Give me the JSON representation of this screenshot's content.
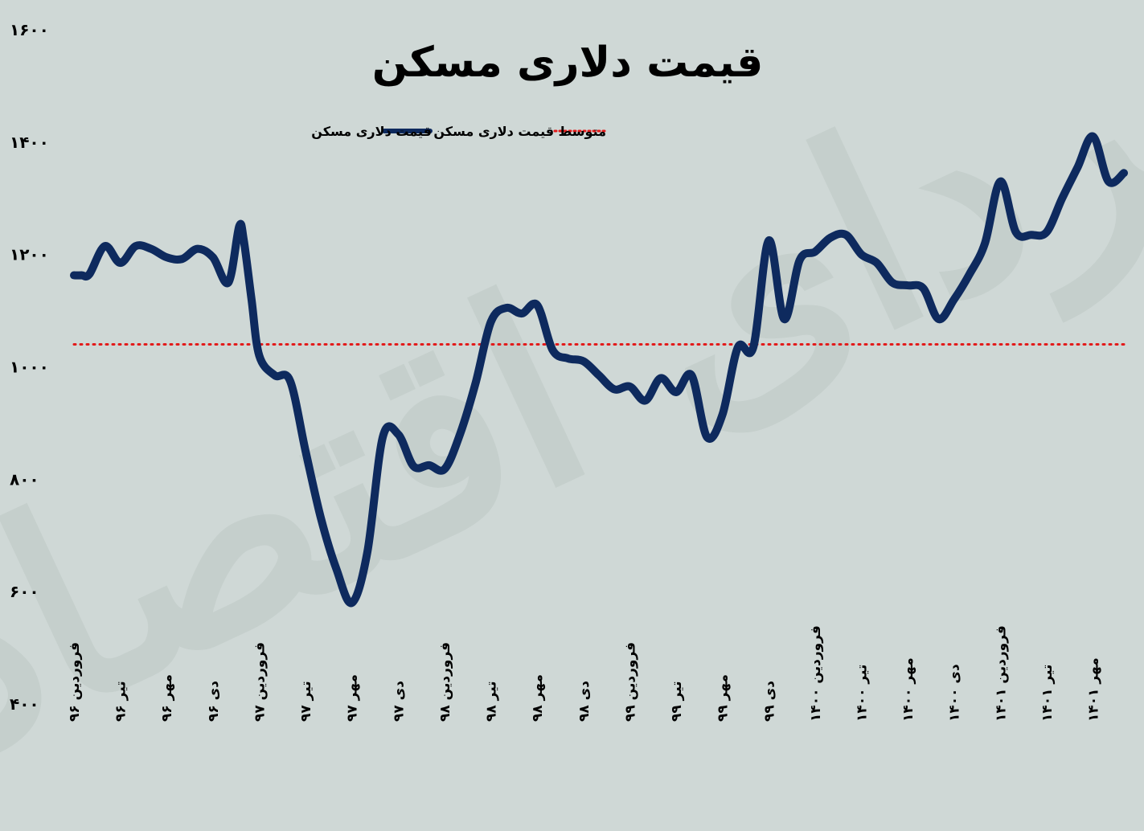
{
  "chart_data": {
    "type": "line",
    "title": "قیمت دلاری مسکن",
    "legend": {
      "position": "top",
      "items": [
        {
          "label": "قیمت دلاری مسکن",
          "style": "solid",
          "color": "#0e2a5e"
        },
        {
          "label": "متوسط قیمت دلاری مسکن",
          "style": "dotted",
          "color": "#e31a1a"
        }
      ]
    },
    "watermark": "فردای اقتصاد",
    "ylim": [
      400,
      1600
    ],
    "yticks": [
      "۴۰۰",
      "۶۰۰",
      "۸۰۰",
      "۱۰۰۰",
      "۱۲۰۰",
      "۱۴۰۰",
      "۱۶۰۰"
    ],
    "ytick_values": [
      400,
      600,
      800,
      1000,
      1200,
      1400,
      1600
    ],
    "xlim": [
      0,
      68
    ],
    "xticks": [
      {
        "pos": 0,
        "label": "فروردین ۹۶"
      },
      {
        "pos": 3,
        "label": "تیر ۹۶"
      },
      {
        "pos": 6,
        "label": "مهر ۹۶"
      },
      {
        "pos": 9,
        "label": "دی ۹۶"
      },
      {
        "pos": 12,
        "label": "فروردین ۹۷"
      },
      {
        "pos": 15,
        "label": "تیر ۹۷"
      },
      {
        "pos": 18,
        "label": "مهر ۹۷"
      },
      {
        "pos": 21,
        "label": "دی ۹۷"
      },
      {
        "pos": 24,
        "label": "فروردین ۹۸"
      },
      {
        "pos": 27,
        "label": "تیر ۹۸"
      },
      {
        "pos": 30,
        "label": "مهر ۹۸"
      },
      {
        "pos": 33,
        "label": "دی ۹۸"
      },
      {
        "pos": 36,
        "label": "فروردین ۹۹"
      },
      {
        "pos": 39,
        "label": "تیر ۹۹"
      },
      {
        "pos": 42,
        "label": "مهر ۹۹"
      },
      {
        "pos": 45,
        "label": "دی ۹۹"
      },
      {
        "pos": 48,
        "label": "فروردین ۱۴۰۰"
      },
      {
        "pos": 51,
        "label": "تیر ۱۴۰۰"
      },
      {
        "pos": 54,
        "label": "مهر ۱۴۰۰"
      },
      {
        "pos": 57,
        "label": "دی ۱۴۰۰"
      },
      {
        "pos": 60,
        "label": "فروردین ۱۴۰۱"
      },
      {
        "pos": 63,
        "label": "تیر ۱۴۰۱"
      },
      {
        "pos": 66,
        "label": "مهر ۱۴۰۱"
      }
    ],
    "average": 1040,
    "series": [
      {
        "name": "قیمت دلاری مسکن",
        "x": [
          0,
          0.5,
          1,
          2,
          3,
          4,
          5,
          6,
          7,
          8,
          9,
          10,
          10.7,
          11,
          11.5,
          12,
          13,
          14,
          15,
          16,
          17,
          18,
          19,
          20,
          21,
          22,
          23,
          24,
          25,
          26,
          27,
          28,
          29,
          30,
          31,
          32,
          33,
          34,
          35,
          36,
          37,
          38,
          39,
          40,
          41,
          42,
          43,
          44,
          45,
          46,
          47,
          48,
          49,
          50,
          51,
          52,
          53,
          54,
          55,
          56,
          57,
          58,
          59,
          60,
          61,
          62,
          63,
          64,
          65,
          66,
          67,
          68
        ],
        "values": [
          1163,
          1163,
          1165,
          1215,
          1185,
          1215,
          1210,
          1195,
          1192,
          1210,
          1195,
          1150,
          1250,
          1225,
          1120,
          1020,
          985,
          975,
          850,
          730,
          640,
          580,
          670,
          875,
          880,
          823,
          825,
          818,
          880,
          970,
          1080,
          1105,
          1095,
          1110,
          1030,
          1015,
          1010,
          985,
          960,
          965,
          940,
          980,
          955,
          985,
          875,
          915,
          1035,
          1035,
          1225,
          1085,
          1190,
          1205,
          1230,
          1235,
          1200,
          1185,
          1150,
          1145,
          1140,
          1085,
          1120,
          1165,
          1220,
          1330,
          1240,
          1235,
          1240,
          1300,
          1355,
          1410,
          1330,
          1345
        ]
      }
    ]
  }
}
